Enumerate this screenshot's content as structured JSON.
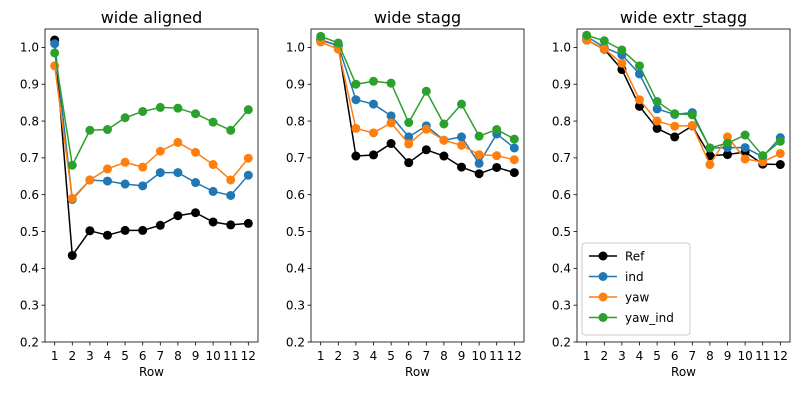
{
  "chart_data": [
    {
      "type": "line",
      "title": "wide aligned",
      "xlabel": "Row",
      "ylabel": "",
      "x": [
        1,
        2,
        3,
        4,
        5,
        6,
        7,
        8,
        9,
        10,
        11,
        12
      ],
      "xlim": [
        0.45,
        12.55
      ],
      "ylim": [
        0.2,
        1.05
      ],
      "yticks": [
        "0.2",
        "0.3",
        "0.4",
        "0.5",
        "0.6",
        "0.7",
        "0.8",
        "0.9",
        "1.0"
      ],
      "series": [
        {
          "name": "Ref",
          "color": "#000000",
          "values": [
            1.02,
            0.435,
            0.502,
            0.49,
            0.503,
            0.503,
            0.517,
            0.543,
            0.551,
            0.526,
            0.518,
            0.522
          ]
        },
        {
          "name": "ind",
          "color": "#1f77b4",
          "values": [
            1.01,
            0.587,
            0.64,
            0.637,
            0.629,
            0.624,
            0.66,
            0.66,
            0.633,
            0.609,
            0.598,
            0.653
          ]
        },
        {
          "name": "yaw",
          "color": "#ff7f0e",
          "values": [
            0.95,
            0.59,
            0.64,
            0.67,
            0.688,
            0.675,
            0.718,
            0.742,
            0.715,
            0.682,
            0.64,
            0.699
          ]
        },
        {
          "name": "yaw_ind",
          "color": "#2ca02c",
          "values": [
            0.985,
            0.68,
            0.775,
            0.777,
            0.809,
            0.826,
            0.837,
            0.835,
            0.82,
            0.797,
            0.775,
            0.831
          ]
        }
      ]
    },
    {
      "type": "line",
      "title": "wide stagg",
      "xlabel": "Row",
      "ylabel": "",
      "x": [
        1,
        2,
        3,
        4,
        5,
        6,
        7,
        8,
        9,
        10,
        11,
        12
      ],
      "xlim": [
        0.45,
        12.55
      ],
      "ylim": [
        0.2,
        1.05
      ],
      "yticks": [
        "0.2",
        "0.3",
        "0.4",
        "0.5",
        "0.6",
        "0.7",
        "0.8",
        "0.9",
        "1.0"
      ],
      "series": [
        {
          "name": "Ref",
          "color": "#000000",
          "values": [
            1.02,
            1.005,
            0.705,
            0.708,
            0.739,
            0.687,
            0.722,
            0.705,
            0.675,
            0.657,
            0.674,
            0.66
          ]
        },
        {
          "name": "ind",
          "color": "#1f77b4",
          "values": [
            1.02,
            1.005,
            0.858,
            0.846,
            0.814,
            0.757,
            0.787,
            0.748,
            0.757,
            0.685,
            0.765,
            0.727
          ]
        },
        {
          "name": "yaw",
          "color": "#ff7f0e",
          "values": [
            1.015,
            0.995,
            0.78,
            0.768,
            0.795,
            0.738,
            0.778,
            0.748,
            0.734,
            0.709,
            0.706,
            0.695
          ]
        },
        {
          "name": "yaw_ind",
          "color": "#2ca02c",
          "values": [
            1.03,
            1.012,
            0.9,
            0.908,
            0.903,
            0.796,
            0.881,
            0.792,
            0.846,
            0.759,
            0.777,
            0.751
          ]
        }
      ]
    },
    {
      "type": "line",
      "title": "wide extr_stagg",
      "xlabel": "Row",
      "ylabel": "",
      "x": [
        1,
        2,
        3,
        4,
        5,
        6,
        7,
        8,
        9,
        10,
        11,
        12
      ],
      "xlim": [
        0.45,
        12.55
      ],
      "ylim": [
        0.2,
        1.05
      ],
      "yticks": [
        "0.2",
        "0.3",
        "0.4",
        "0.5",
        "0.6",
        "0.7",
        "0.8",
        "0.9",
        "1.0"
      ],
      "legend": "lower-left",
      "series": [
        {
          "name": "Ref",
          "color": "#000000",
          "values": [
            1.02,
            0.995,
            0.94,
            0.84,
            0.78,
            0.757,
            0.787,
            0.706,
            0.709,
            0.716,
            0.683,
            0.682
          ]
        },
        {
          "name": "ind",
          "color": "#1f77b4",
          "values": [
            1.03,
            1.0,
            0.98,
            0.928,
            0.833,
            0.818,
            0.823,
            0.727,
            0.728,
            0.728,
            0.703,
            0.755
          ]
        },
        {
          "name": "yaw",
          "color": "#ff7f0e",
          "values": [
            1.02,
            0.996,
            0.957,
            0.858,
            0.8,
            0.786,
            0.788,
            0.682,
            0.757,
            0.697,
            0.689,
            0.712
          ]
        },
        {
          "name": "yaw_ind",
          "color": "#2ca02c",
          "values": [
            1.033,
            1.018,
            0.993,
            0.95,
            0.853,
            0.82,
            0.817,
            0.727,
            0.74,
            0.762,
            0.706,
            0.745
          ]
        }
      ]
    }
  ]
}
